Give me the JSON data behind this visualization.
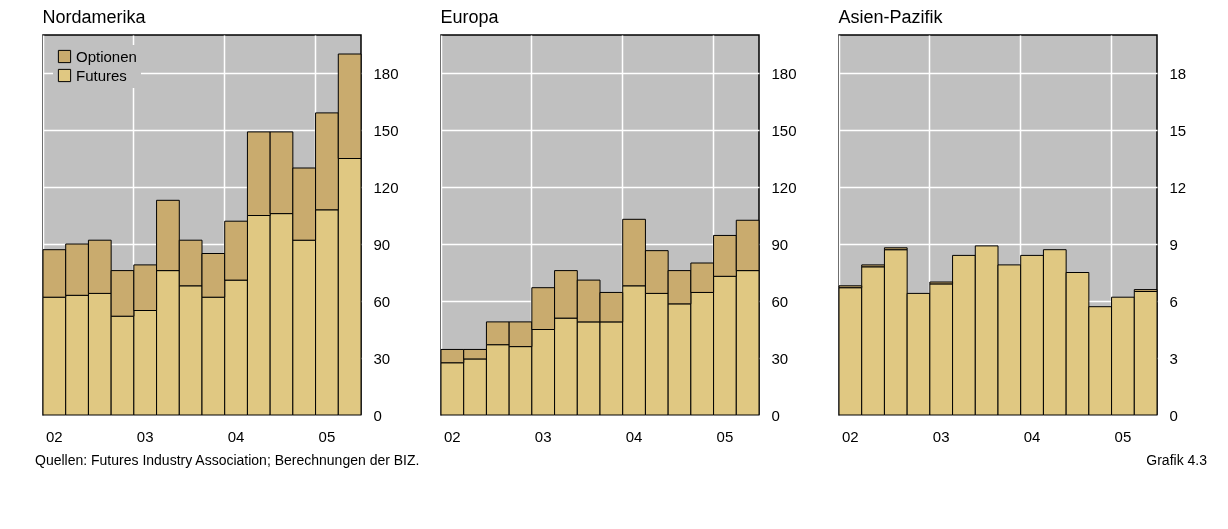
{
  "chart_data": [
    {
      "type": "bar",
      "title": "Nordamerika",
      "stacked": true,
      "grid": true,
      "legend": "top left",
      "categories": [
        "02",
        null,
        null,
        null,
        "03",
        null,
        null,
        null,
        "04",
        null,
        null,
        null,
        "05",
        null
      ],
      "ylim": [
        0,
        200
      ],
      "yticks": [
        0,
        30,
        60,
        90,
        120,
        150,
        180
      ],
      "series": [
        {
          "name": "Futures",
          "color": "#e0c882",
          "values": [
            62,
            63,
            64,
            52,
            55,
            76,
            68,
            62,
            71,
            105,
            106,
            92,
            108,
            135
          ]
        },
        {
          "name": "Optionen",
          "color": "#c9ab6e",
          "values": [
            25,
            27,
            28,
            24,
            24,
            37,
            24,
            23,
            31,
            44,
            43,
            38,
            51,
            55
          ]
        }
      ],
      "annotations": [
        "Quellen: Futures Industry Association; Berechnungen der BIZ."
      ]
    },
    {
      "type": "bar",
      "title": "Europa",
      "stacked": true,
      "grid": true,
      "categories": [
        "02",
        null,
        null,
        null,
        "03",
        null,
        null,
        null,
        "04",
        null,
        null,
        null,
        "05",
        null
      ],
      "ylim": [
        0,
        200
      ],
      "yticks": [
        0,
        30,
        60,
        90,
        120,
        150,
        180
      ],
      "series": [
        {
          "color": "#e0c882",
          "values": [
            27.5,
            29.5,
            37,
            36,
            45,
            51,
            49,
            49,
            68,
            64,
            58.5,
            64.5,
            73,
            76
          ]
        },
        {
          "color": "#c9ab6e",
          "values": [
            7,
            5,
            12,
            13,
            22,
            25,
            22,
            15.5,
            35,
            22.5,
            17.5,
            15.5,
            21.5,
            26.5
          ]
        }
      ]
    },
    {
      "type": "bar",
      "title": "Asien-Pazifik",
      "stacked": true,
      "grid": true,
      "categories": [
        "02",
        null,
        null,
        null,
        "03",
        null,
        null,
        null,
        "04",
        null,
        null,
        null,
        "05",
        null
      ],
      "ylim": [
        0,
        20
      ],
      "yticks": [
        0,
        3,
        6,
        9,
        12,
        15,
        18
      ],
      "series": [
        {
          "color": "#e0c882",
          "values": [
            6.7,
            7.8,
            8.7,
            6.4,
            6.9,
            8.4,
            8.9,
            7.9,
            8.4,
            8.7,
            7.5,
            5.7,
            6.2,
            6.5
          ]
        },
        {
          "color": "#c9ab6e",
          "values": [
            0.1,
            0.1,
            0.1,
            null,
            0.1,
            null,
            null,
            null,
            null,
            null,
            null,
            null,
            null,
            0.1
          ]
        }
      ],
      "annotations": [
        "Grafik 4.3"
      ]
    }
  ]
}
